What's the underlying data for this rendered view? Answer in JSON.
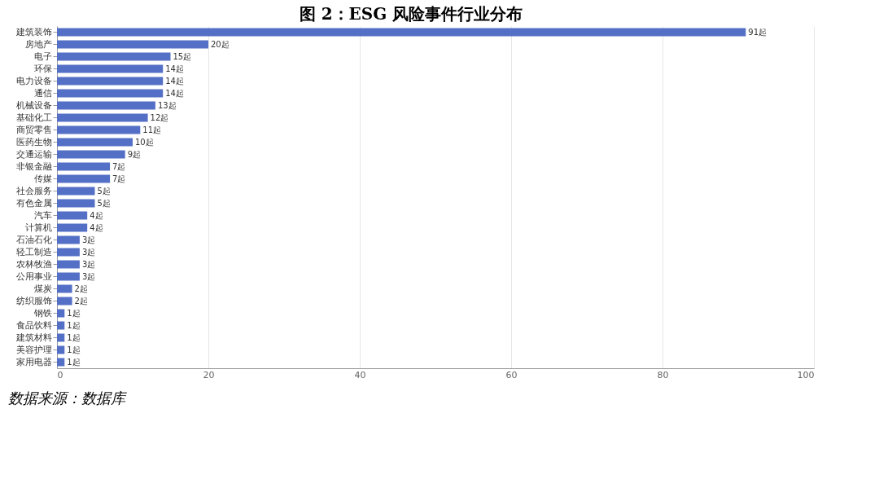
{
  "chart_data": {
    "type": "bar",
    "orientation": "horizontal",
    "title": "图 2：ESG 风险事件行业分布",
    "categories": [
      "建筑装饰",
      "房地产",
      "电子",
      "环保",
      "电力设备",
      "通信",
      "机械设备",
      "基础化工",
      "商贸零售",
      "医药生物",
      "交通运输",
      "非银金融",
      "传媒",
      "社会服务",
      "有色金属",
      "汽车",
      "计算机",
      "石油石化",
      "轻工制造",
      "农林牧渔",
      "公用事业",
      "煤炭",
      "纺织服饰",
      "钢铁",
      "食品饮料",
      "建筑材料",
      "美容护理",
      "家用电器"
    ],
    "values": [
      91,
      20,
      15,
      14,
      14,
      14,
      13,
      12,
      11,
      10,
      9,
      7,
      7,
      5,
      5,
      4,
      4,
      3,
      3,
      3,
      3,
      2,
      2,
      1,
      1,
      1,
      1,
      1
    ],
    "value_labels": [
      "91起",
      "20起",
      "15起",
      "14起",
      "14起",
      "14起",
      "13起",
      "12起",
      "11起",
      "10起",
      "9起",
      "7起",
      "7起",
      "5起",
      "5起",
      "4起",
      "4起",
      "3起",
      "3起",
      "3起",
      "3起",
      "2起",
      "2起",
      "1起",
      "1起",
      "1起",
      "1起",
      "1起"
    ],
    "color": "#5470c6",
    "xlim": [
      0,
      100
    ],
    "xticks": [
      0,
      20,
      40,
      60,
      80,
      100
    ],
    "grid": "x",
    "annotations": [
      "数据来源：数据库"
    ]
  }
}
